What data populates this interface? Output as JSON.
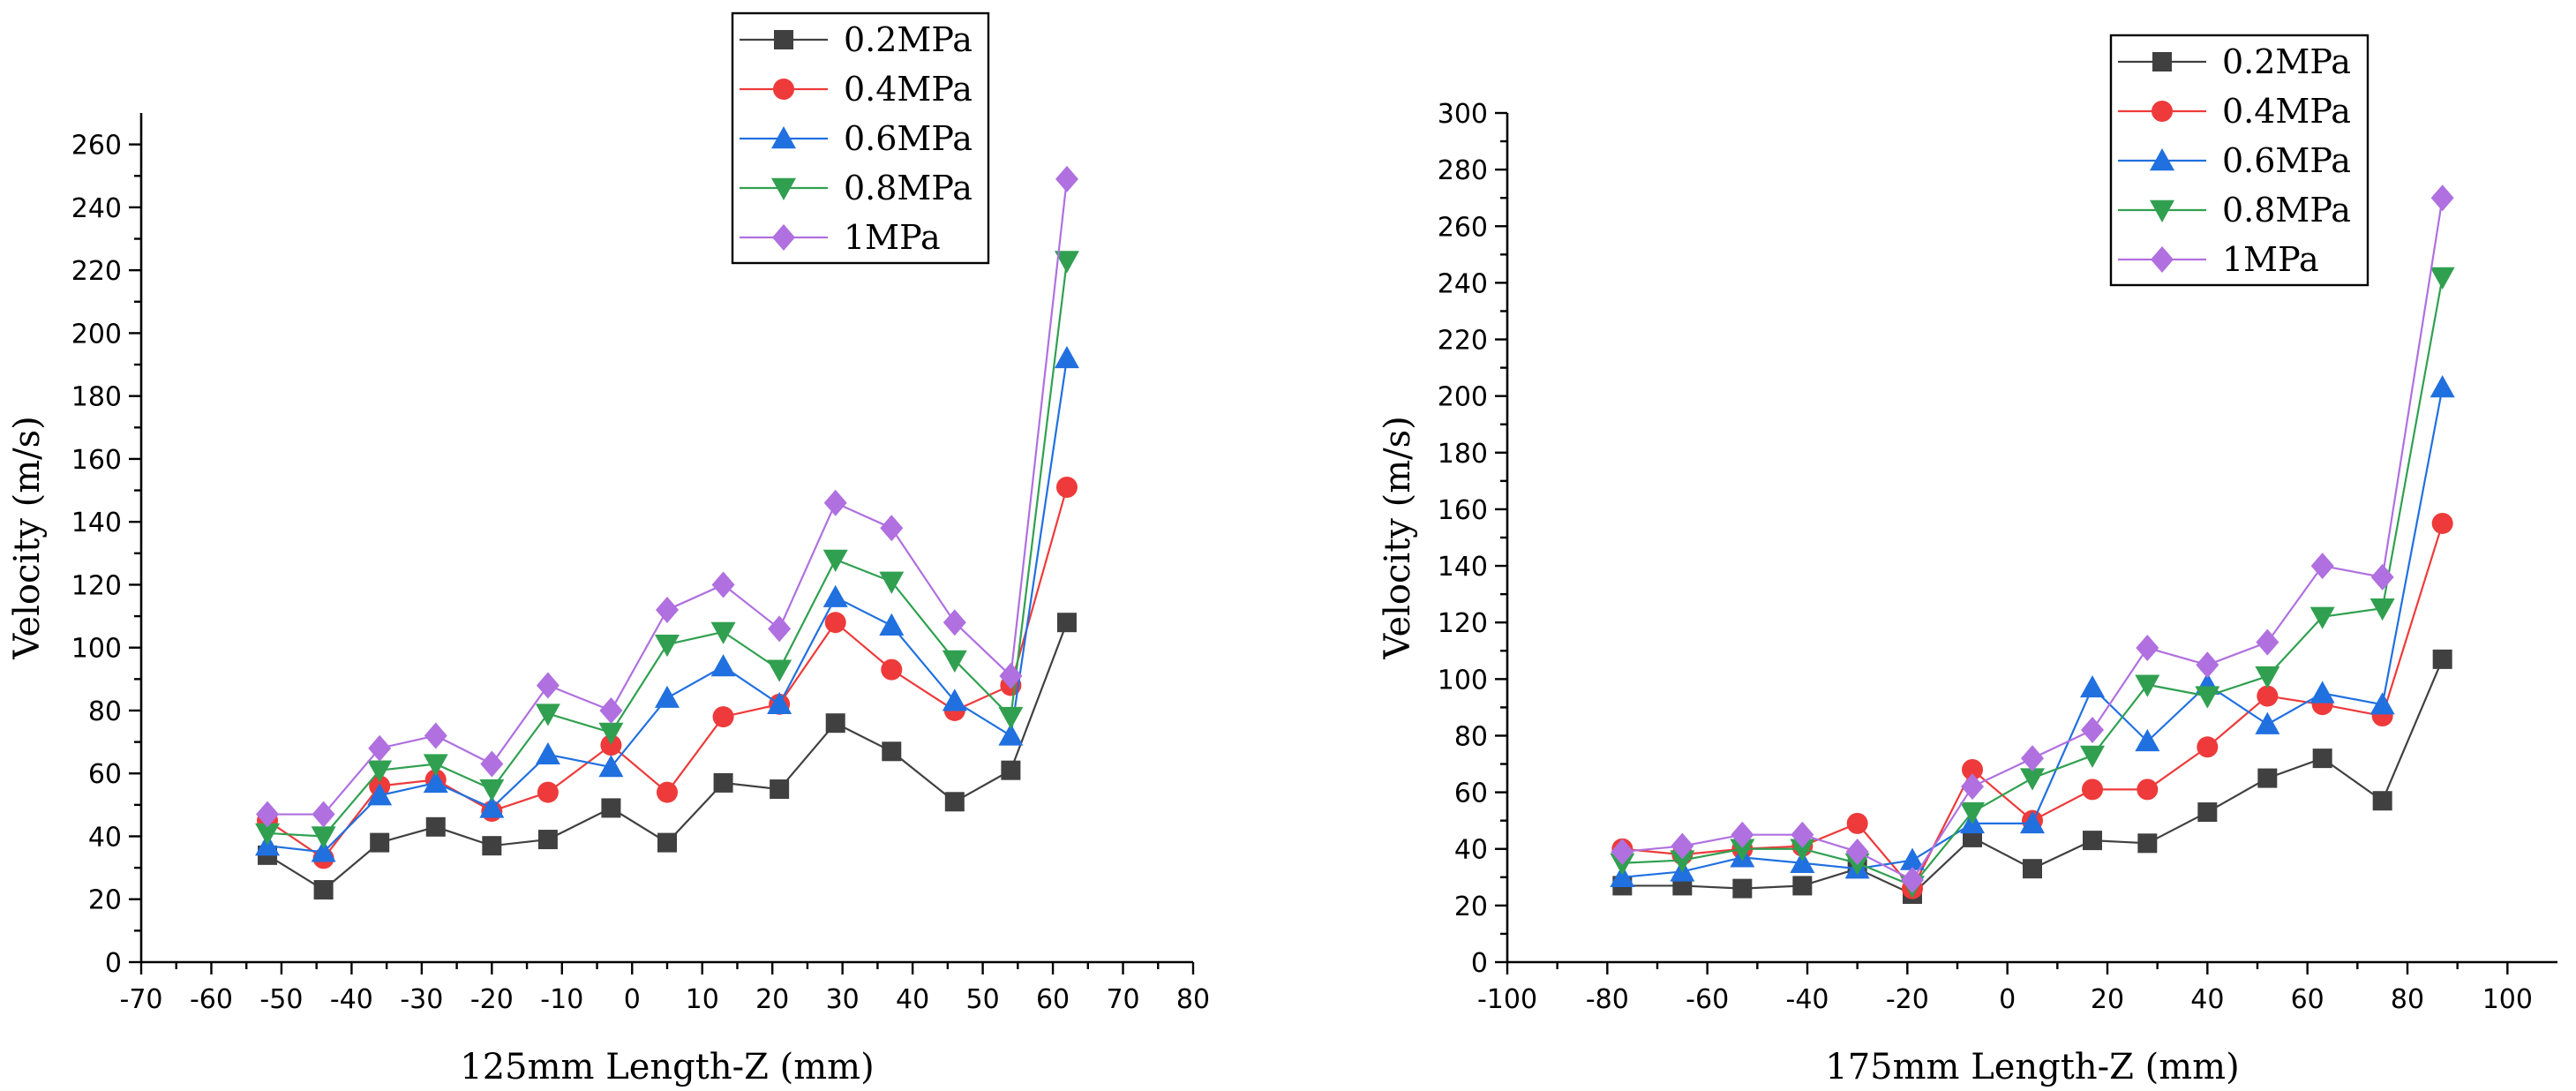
{
  "chart_data": [
    {
      "type": "line",
      "xlabel": "125mm Length-Z (mm)",
      "ylabel": "Velocity (m/s)",
      "xlim": [
        -70,
        80
      ],
      "ylim": [
        0,
        270
      ],
      "xticks": [
        -70,
        -60,
        -50,
        -40,
        -30,
        -20,
        -10,
        0,
        10,
        20,
        30,
        40,
        50,
        60,
        70,
        80
      ],
      "yticks": [
        0,
        20,
        40,
        60,
        80,
        100,
        120,
        140,
        160,
        180,
        200,
        220,
        240,
        260
      ],
      "x": [
        -52,
        -44,
        -36,
        -28,
        -20,
        -12,
        -3,
        5,
        13,
        21,
        29,
        37,
        46,
        54,
        62
      ],
      "legend_position": "top-right",
      "series": [
        {
          "name": "0.2MPa",
          "color": "#404040",
          "marker": "square",
          "values": [
            34,
            23,
            38,
            43,
            37,
            39,
            49,
            38,
            57,
            55,
            76,
            67,
            51,
            61,
            108
          ]
        },
        {
          "name": "0.4MPa",
          "color": "#ee3a3a",
          "marker": "circle",
          "values": [
            45,
            33,
            56,
            58,
            48,
            54,
            69,
            54,
            78,
            82,
            108,
            93,
            80,
            88,
            151
          ]
        },
        {
          "name": "0.6MPa",
          "color": "#2070e0",
          "marker": "triangle-up",
          "values": [
            37,
            35,
            53,
            57,
            49,
            66,
            62,
            84,
            94,
            82,
            116,
            107,
            83,
            72,
            192
          ]
        },
        {
          "name": "0.8MPa",
          "color": "#30a050",
          "marker": "triangle-down",
          "values": [
            41,
            40,
            61,
            63,
            55,
            79,
            73,
            101,
            105,
            93,
            128,
            121,
            96,
            78,
            223
          ]
        },
        {
          "name": "1MPa",
          "color": "#b070e0",
          "marker": "diamond",
          "values": [
            47,
            47,
            68,
            72,
            63,
            88,
            80,
            112,
            120,
            106,
            146,
            138,
            108,
            91,
            249
          ]
        }
      ]
    },
    {
      "type": "line",
      "xlabel": "175mm Length-Z (mm)",
      "ylabel": "Velocity (m/s)",
      "xlim": [
        -100,
        110
      ],
      "ylim": [
        0,
        300
      ],
      "xticks": [
        -100,
        -80,
        -60,
        -40,
        -20,
        0,
        20,
        40,
        60,
        80,
        100
      ],
      "yticks": [
        0,
        20,
        40,
        60,
        80,
        100,
        120,
        140,
        160,
        180,
        200,
        220,
        240,
        260,
        280,
        300
      ],
      "x": [
        -77,
        -65,
        -53,
        -41,
        -30,
        -19,
        -7,
        5,
        17,
        28,
        40,
        52,
        63,
        75,
        87
      ],
      "legend_position": "top-right",
      "series": [
        {
          "name": "0.2MPa",
          "color": "#404040",
          "marker": "square",
          "values": [
            27,
            27,
            26,
            27,
            33,
            24,
            44,
            33,
            43,
            42,
            53,
            65,
            72,
            57,
            107
          ]
        },
        {
          "name": "0.4MPa",
          "color": "#ee3a3a",
          "marker": "circle",
          "values": [
            40,
            38,
            40,
            41,
            49,
            26,
            68,
            50,
            61,
            61,
            76,
            94,
            91,
            87,
            155
          ]
        },
        {
          "name": "0.6MPa",
          "color": "#2070e0",
          "marker": "triangle-up",
          "values": [
            30,
            32,
            37,
            35,
            33,
            36,
            49,
            49,
            97,
            78,
            98,
            84,
            95,
            91,
            203
          ]
        },
        {
          "name": "0.8MPa",
          "color": "#30a050",
          "marker": "triangle-down",
          "values": [
            35,
            36,
            40,
            40,
            35,
            27,
            53,
            65,
            73,
            98,
            94,
            101,
            122,
            125,
            242
          ]
        },
        {
          "name": "1MPa",
          "color": "#b070e0",
          "marker": "diamond",
          "values": [
            39,
            41,
            45,
            45,
            39,
            29,
            62,
            72,
            82,
            111,
            105,
            113,
            140,
            136,
            270
          ]
        }
      ]
    }
  ]
}
